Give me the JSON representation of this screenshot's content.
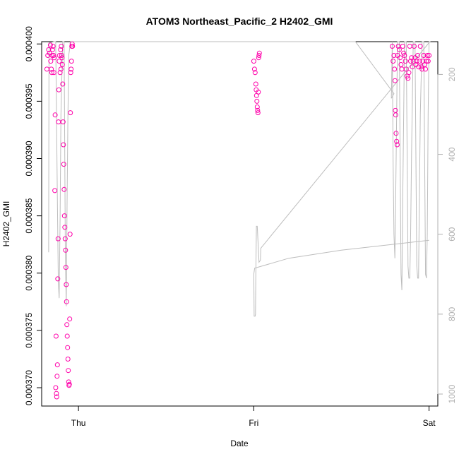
{
  "chart_data": {
    "type": "scatter",
    "title": "ATOM3 Northeast_Pacific_2 H2402_GMI",
    "xlabel": "Date",
    "ylabel": "H2402_GMI",
    "x_ticks": [
      {
        "label": "Thu",
        "value": 0.0
      },
      {
        "label": "Fri",
        "value": 1.0
      },
      {
        "label": "Sat",
        "value": 2.0
      }
    ],
    "xlim": [
      -0.21,
      2.05
    ],
    "ylim": [
      0.0003684,
      0.0004002
    ],
    "y_ticks": [
      0.00037,
      0.000375,
      0.00038,
      0.000385,
      0.00039,
      0.000395,
      0.0004
    ],
    "y_tick_labels": [
      "0.000370",
      "0.000375",
      "0.000380",
      "0.000385",
      "0.000390",
      "0.000395",
      "0.000400"
    ],
    "right_axis": {
      "lim": [
        118,
        1030
      ],
      "ticks": [
        200,
        400,
        600,
        800,
        1000
      ],
      "color": "#b0b0b0",
      "reversed": true
    },
    "series": [
      {
        "type": "scatter",
        "color": "#ff00aa",
        "marker": "open-circle",
        "points": [
          [
            -0.18,
            0.0003978
          ],
          [
            -0.175,
            0.000399
          ],
          [
            -0.17,
            0.0003995
          ],
          [
            -0.165,
            0.0003992
          ],
          [
            -0.16,
            0.0003999
          ],
          [
            -0.158,
            0.0003985
          ],
          [
            -0.155,
            0.0003978
          ],
          [
            -0.152,
            0.0003975
          ],
          [
            -0.15,
            0.000399
          ],
          [
            -0.148,
            0.0003995
          ],
          [
            -0.145,
            0.0003998
          ],
          [
            -0.142,
            0.000399
          ],
          [
            -0.14,
            0.0003975
          ],
          [
            -0.138,
            0.0003988
          ],
          [
            -0.135,
            0.0003872
          ],
          [
            -0.133,
            0.0003938
          ],
          [
            -0.13,
            0.00037
          ],
          [
            -0.128,
            0.0003745
          ],
          [
            -0.126,
            0.0003695
          ],
          [
            -0.124,
            0.0003692
          ],
          [
            -0.122,
            0.000371
          ],
          [
            -0.12,
            0.000372
          ],
          [
            -0.118,
            0.0003795
          ],
          [
            -0.116,
            0.000383
          ],
          [
            -0.114,
            0.0003932
          ],
          [
            -0.112,
            0.000396
          ],
          [
            -0.11,
            0.0003985
          ],
          [
            -0.108,
            0.000399
          ],
          [
            -0.105,
            0.0003975
          ],
          [
            -0.102,
            0.0003995
          ],
          [
            -0.1,
            0.0003978
          ],
          [
            -0.098,
            0.0003998
          ],
          [
            -0.096,
            0.000399
          ],
          [
            -0.094,
            0.0003988
          ],
          [
            -0.092,
            0.0003982
          ],
          [
            -0.09,
            0.0003965
          ],
          [
            -0.088,
            0.0003932
          ],
          [
            -0.086,
            0.0003912
          ],
          [
            -0.084,
            0.0003895
          ],
          [
            -0.082,
            0.0003873
          ],
          [
            -0.08,
            0.000385
          ],
          [
            -0.078,
            0.000384
          ],
          [
            -0.076,
            0.000383
          ],
          [
            -0.074,
            0.000382
          ],
          [
            -0.072,
            0.0003805
          ],
          [
            -0.07,
            0.000379
          ],
          [
            -0.068,
            0.0003775
          ],
          [
            -0.066,
            0.0003755
          ],
          [
            -0.064,
            0.0003745
          ],
          [
            -0.062,
            0.0003735
          ],
          [
            -0.06,
            0.0003725
          ],
          [
            -0.058,
            0.0003715
          ],
          [
            -0.056,
            0.0003705
          ],
          [
            -0.054,
            0.0003702
          ],
          [
            -0.052,
            0.0003703
          ],
          [
            -0.05,
            0.000376
          ],
          [
            -0.048,
            0.0003834
          ],
          [
            -0.046,
            0.000394
          ],
          [
            -0.044,
            0.0003975
          ],
          [
            -0.042,
            0.0003978
          ],
          [
            -0.04,
            0.0003985
          ],
          [
            -0.038,
            0.0003998
          ],
          [
            -0.036,
            0.0004
          ],
          [
            -0.034,
            0.0003998
          ],
          [
            1.0,
            0.0003985
          ],
          [
            1.004,
            0.0003978
          ],
          [
            1.008,
            0.0003975
          ],
          [
            1.012,
            0.0003965
          ],
          [
            1.014,
            0.000396
          ],
          [
            1.016,
            0.0003955
          ],
          [
            1.018,
            0.000395
          ],
          [
            1.02,
            0.0003945
          ],
          [
            1.022,
            0.0003942
          ],
          [
            1.024,
            0.000394
          ],
          [
            1.026,
            0.0003958
          ],
          [
            1.028,
            0.0003988
          ],
          [
            1.03,
            0.000399
          ],
          [
            1.032,
            0.0003992
          ],
          [
            1.79,
            0.0003998
          ],
          [
            1.795,
            0.0003985
          ],
          [
            1.8,
            0.000399
          ],
          [
            1.803,
            0.0003978
          ],
          [
            1.806,
            0.0003968
          ],
          [
            1.808,
            0.0003942
          ],
          [
            1.81,
            0.0003938
          ],
          [
            1.812,
            0.0003922
          ],
          [
            1.815,
            0.0003915
          ],
          [
            1.818,
            0.0003912
          ],
          [
            1.82,
            0.000399
          ],
          [
            1.825,
            0.0003998
          ],
          [
            1.83,
            0.0003995
          ],
          [
            1.835,
            0.0003988
          ],
          [
            1.84,
            0.0003982
          ],
          [
            1.845,
            0.0003978
          ],
          [
            1.85,
            0.0003998
          ],
          [
            1.855,
            0.0003992
          ],
          [
            1.86,
            0.000399
          ],
          [
            1.865,
            0.0003985
          ],
          [
            1.87,
            0.0003978
          ],
          [
            1.875,
            0.0003972
          ],
          [
            1.88,
            0.000397
          ],
          [
            1.885,
            0.0003975
          ],
          [
            1.89,
            0.0003998
          ],
          [
            1.895,
            0.0003985
          ],
          [
            1.9,
            0.0003988
          ],
          [
            1.905,
            0.000398
          ],
          [
            1.91,
            0.0003985
          ],
          [
            1.915,
            0.0003998
          ],
          [
            1.92,
            0.0003988
          ],
          [
            1.925,
            0.0003982
          ],
          [
            1.93,
            0.0003985
          ],
          [
            1.935,
            0.000399
          ],
          [
            1.94,
            0.000398
          ],
          [
            1.945,
            0.0003985
          ],
          [
            1.95,
            0.0003998
          ],
          [
            1.955,
            0.000398
          ],
          [
            1.96,
            0.0003978
          ],
          [
            1.965,
            0.0003985
          ],
          [
            1.97,
            0.000399
          ],
          [
            1.975,
            0.0003982
          ],
          [
            1.98,
            0.0003978
          ],
          [
            1.985,
            0.0003985
          ],
          [
            1.99,
            0.000399
          ],
          [
            1.995,
            0.0003985
          ],
          [
            2.0,
            0.000399
          ]
        ]
      },
      {
        "type": "line",
        "color": "#bdbdbd",
        "axis": "right",
        "points": [
          [
            -0.17,
            645
          ],
          [
            -0.168,
            120
          ],
          [
            -0.16,
            120
          ],
          [
            -0.155,
            120
          ],
          [
            -0.14,
            118
          ],
          [
            -0.13,
            118
          ],
          [
            -0.12,
            520
          ],
          [
            -0.115,
            720
          ],
          [
            -0.11,
            760
          ],
          [
            -0.105,
            560
          ],
          [
            -0.1,
            300
          ],
          [
            -0.09,
            118
          ],
          [
            -0.082,
            118
          ],
          [
            -0.075,
            640
          ],
          [
            -0.07,
            780
          ],
          [
            -0.065,
            520
          ],
          [
            -0.06,
            300
          ],
          [
            -0.055,
            150
          ],
          [
            -0.045,
            118
          ],
          [
            -0.04,
            118
          ],
          [
            -0.035,
            118
          ],
          [
            -0.02,
            118
          ],
          [
            0.6,
            118
          ],
          [
            1.58,
            118
          ],
          [
            1.8,
            248
          ],
          [
            1.785,
            260
          ],
          [
            1.79,
            118
          ],
          [
            1.795,
            420
          ],
          [
            1.8,
            600
          ],
          [
            1.805,
            660
          ],
          [
            1.81,
            500
          ],
          [
            1.815,
            300
          ],
          [
            1.82,
            118
          ],
          [
            1.83,
            118
          ],
          [
            1.84,
            700
          ],
          [
            1.845,
            740
          ],
          [
            1.85,
            500
          ],
          [
            1.86,
            118
          ],
          [
            1.87,
            118
          ],
          [
            1.88,
            680
          ],
          [
            1.885,
            710
          ],
          [
            1.89,
            710
          ],
          [
            1.895,
            600
          ],
          [
            1.9,
            400
          ],
          [
            1.91,
            118
          ],
          [
            1.92,
            118
          ],
          [
            1.93,
            680
          ],
          [
            1.935,
            710
          ],
          [
            1.94,
            710
          ],
          [
            1.95,
            300
          ],
          [
            1.96,
            118
          ],
          [
            1.97,
            118
          ],
          [
            1.98,
            700
          ],
          [
            1.985,
            710
          ],
          [
            1.99,
            600
          ],
          [
            1.995,
            300
          ],
          [
            2.0,
            118
          ],
          [
            2.005,
            118
          ],
          [
            1.04,
            635
          ],
          [
            1.038,
            665
          ],
          [
            1.03,
            670
          ],
          [
            1.02,
            580
          ],
          [
            1.015,
            580
          ],
          [
            1.012,
            700
          ],
          [
            1.01,
            800
          ],
          [
            1.008,
            805
          ],
          [
            1.002,
            805
          ],
          [
            1.0,
            700
          ],
          [
            1.005,
            685
          ],
          [
            1.2,
            660
          ],
          [
            1.5,
            640
          ],
          [
            1.8,
            625
          ],
          [
            2.0,
            615
          ]
        ]
      }
    ]
  }
}
